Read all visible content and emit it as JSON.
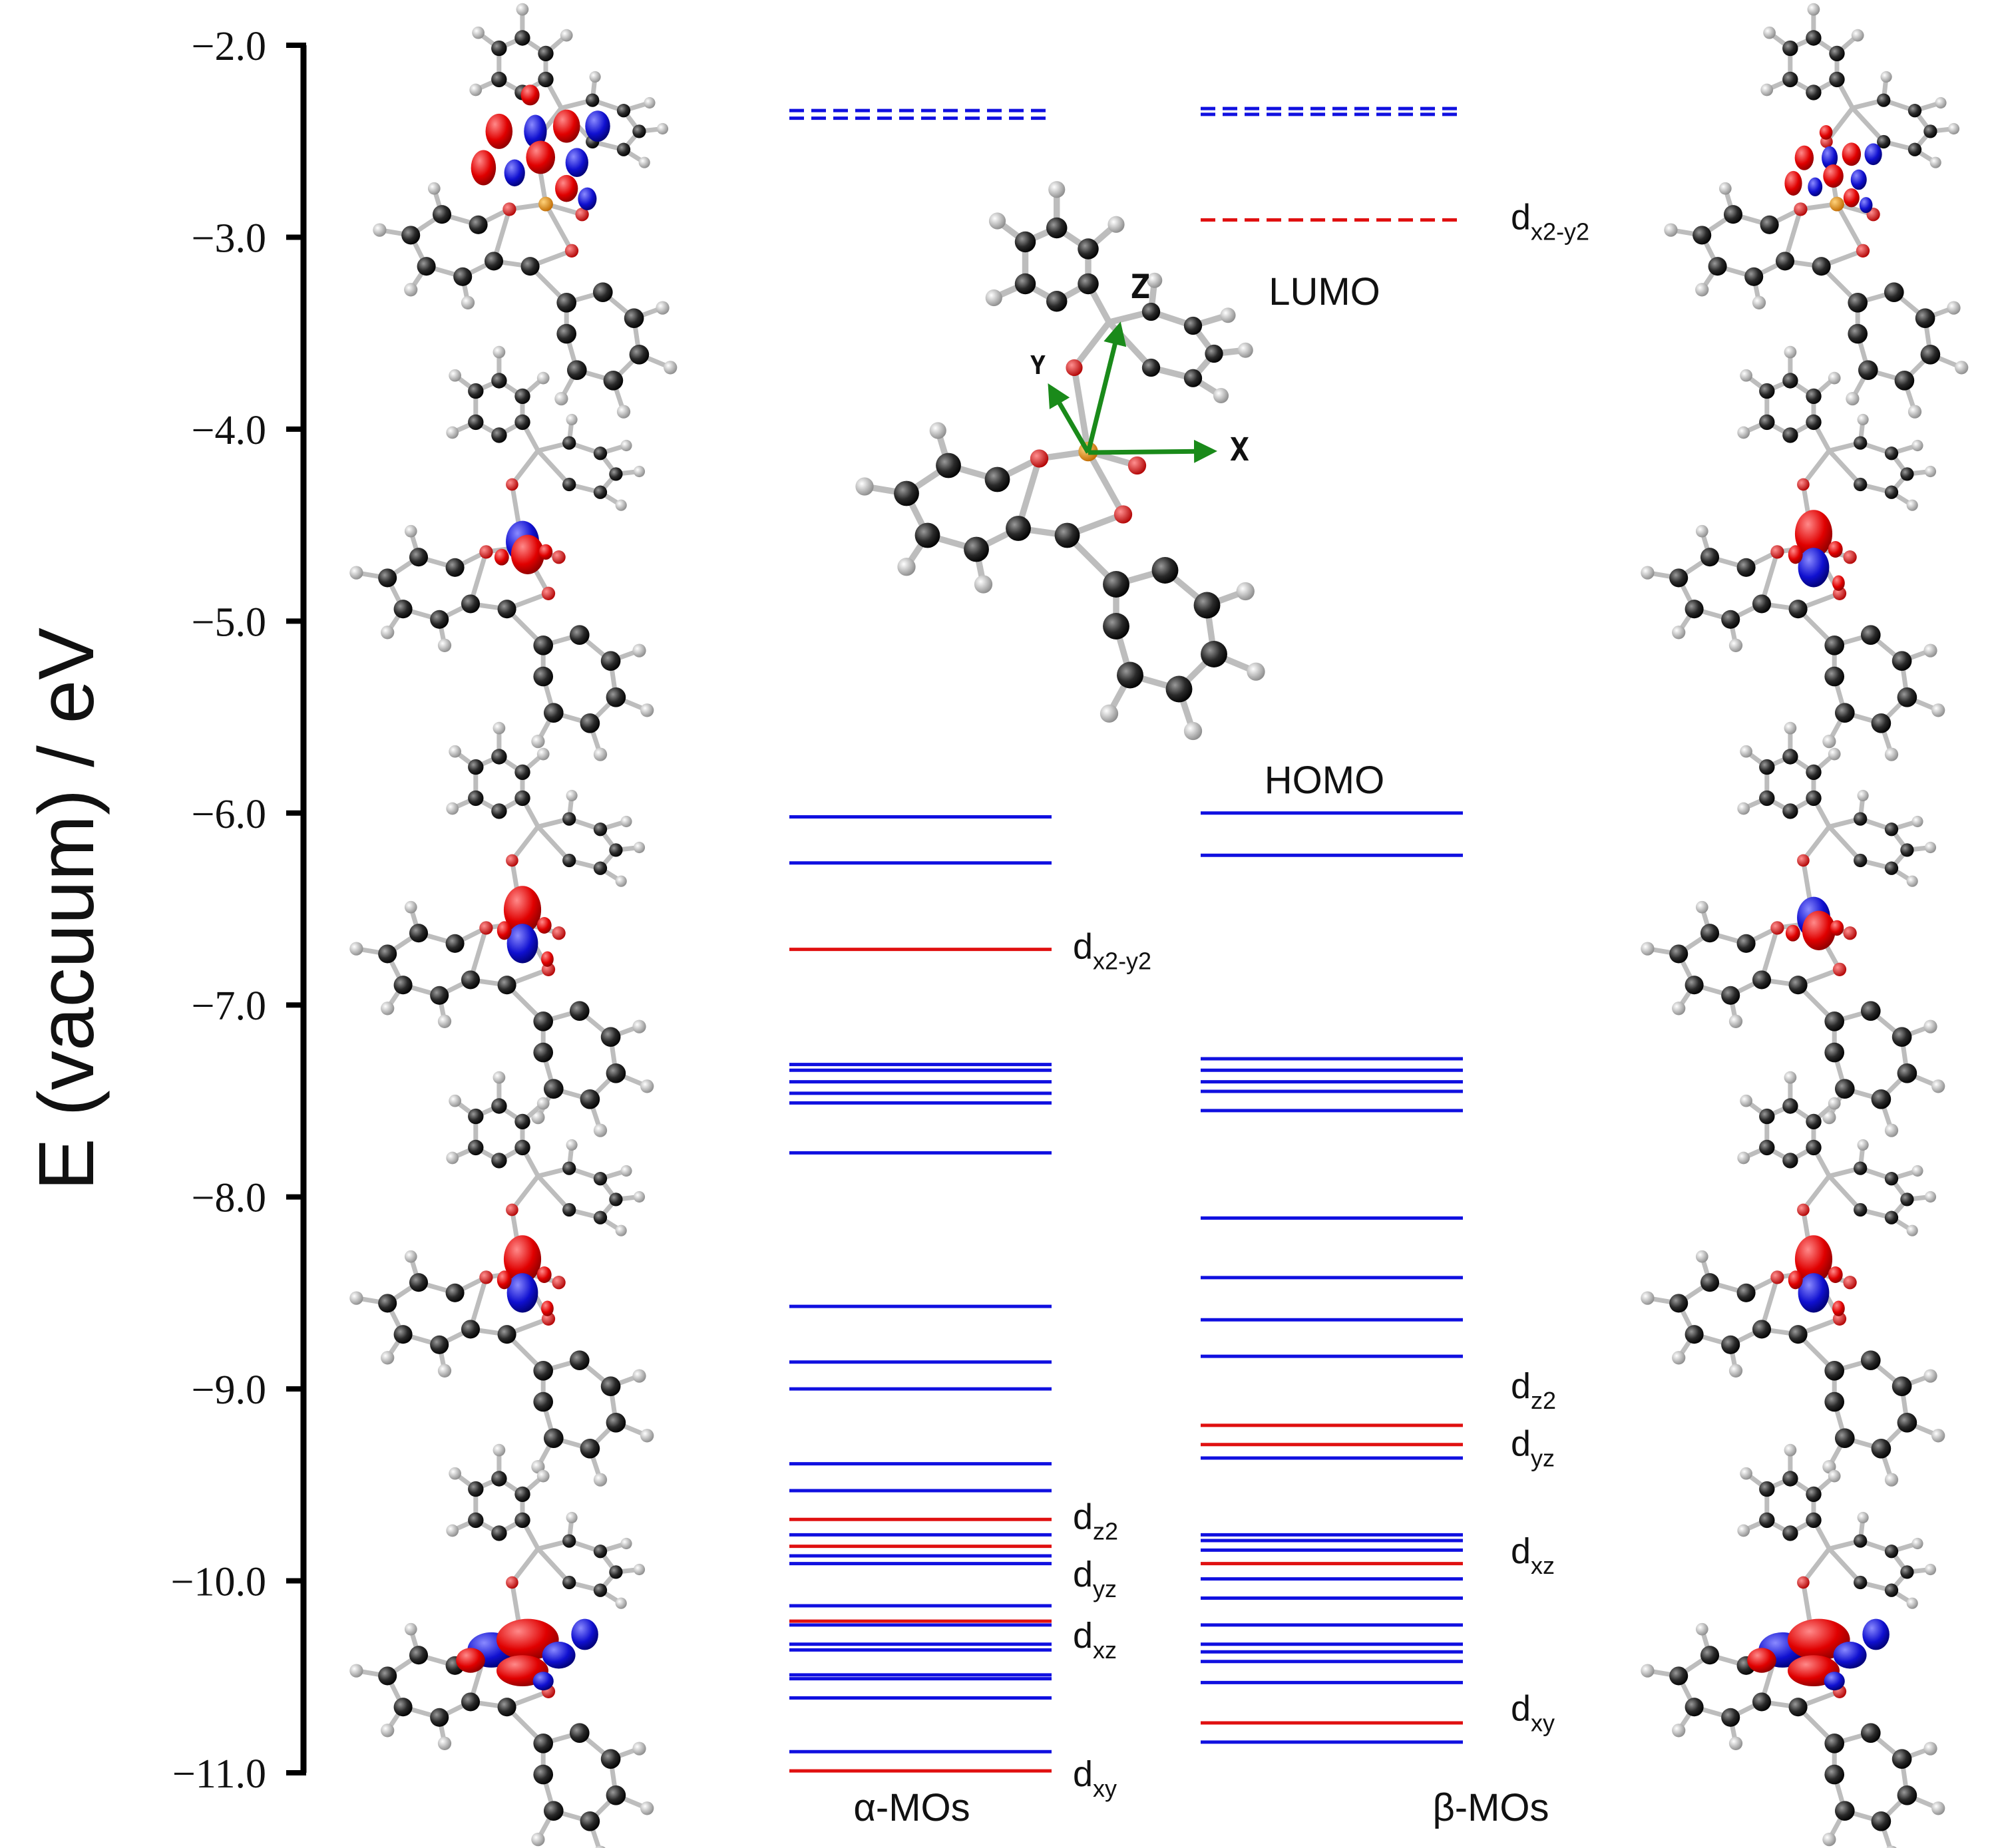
{
  "chart_data": {
    "type": "energy-level-diagram",
    "title": "",
    "ylabel": "E (vacuum)  / eV",
    "ylim": [
      -11.0,
      -2.0
    ],
    "yticks": [
      -2.0,
      -3.0,
      -4.0,
      -5.0,
      -6.0,
      -7.0,
      -8.0,
      -9.0,
      -10.0,
      -11.0
    ],
    "ytick_labels": [
      "−2.0",
      "−3.0",
      "−4.0",
      "−5.0",
      "−6.0",
      "−7.0",
      "−8.0",
      "−9.0",
      "−10.0",
      "−11.0"
    ],
    "colors": {
      "ligand": "#1010e0",
      "metal_d": "#e01010",
      "axis_arrow": "#1a8a1a"
    },
    "columns": [
      {
        "name": "α-MOs",
        "unoccupied": [
          {
            "energy": -2.34,
            "kind": "ligand"
          },
          {
            "energy": -2.38,
            "kind": "ligand"
          }
        ],
        "occupied": [
          {
            "energy": -6.02,
            "kind": "ligand"
          },
          {
            "energy": -6.26,
            "kind": "ligand"
          },
          {
            "energy": -6.71,
            "kind": "metal_d"
          },
          {
            "energy": -7.31,
            "kind": "ligand"
          },
          {
            "energy": -7.34,
            "kind": "ligand"
          },
          {
            "energy": -7.4,
            "kind": "ligand"
          },
          {
            "energy": -7.46,
            "kind": "ligand"
          },
          {
            "energy": -7.51,
            "kind": "ligand"
          },
          {
            "energy": -7.77,
            "kind": "ligand"
          },
          {
            "energy": -8.57,
            "kind": "ligand"
          },
          {
            "energy": -8.86,
            "kind": "ligand"
          },
          {
            "energy": -9.0,
            "kind": "ligand"
          },
          {
            "energy": -9.39,
            "kind": "ligand"
          },
          {
            "energy": -9.53,
            "kind": "ligand"
          },
          {
            "energy": -9.68,
            "kind": "metal_d"
          },
          {
            "energy": -9.76,
            "kind": "ligand"
          },
          {
            "energy": -9.82,
            "kind": "metal_d"
          },
          {
            "energy": -9.87,
            "kind": "ligand"
          },
          {
            "energy": -9.91,
            "kind": "ligand"
          },
          {
            "energy": -10.13,
            "kind": "ligand"
          },
          {
            "energy": -10.21,
            "kind": "metal_d"
          },
          {
            "energy": -10.23,
            "kind": "ligand"
          },
          {
            "energy": -10.33,
            "kind": "ligand"
          },
          {
            "energy": -10.36,
            "kind": "ligand"
          },
          {
            "energy": -10.49,
            "kind": "ligand"
          },
          {
            "energy": -10.51,
            "kind": "ligand"
          },
          {
            "energy": -10.61,
            "kind": "ligand"
          },
          {
            "energy": -10.89,
            "kind": "ligand"
          },
          {
            "energy": -10.99,
            "kind": "metal_d"
          }
        ],
        "labels": [
          {
            "text": "d",
            "sub": "x2-y2",
            "energy": -6.71
          },
          {
            "text": "d",
            "sub": "z2",
            "energy": -9.68
          },
          {
            "text": "d",
            "sub": "yz",
            "energy": -9.98
          },
          {
            "text": "d",
            "sub": "xz",
            "energy": -10.3
          },
          {
            "text": "d",
            "sub": "xy",
            "energy": -11.02
          }
        ]
      },
      {
        "name": "β-MOs",
        "unoccupied": [
          {
            "energy": -2.33,
            "kind": "ligand"
          },
          {
            "energy": -2.36,
            "kind": "ligand"
          },
          {
            "energy": -2.91,
            "kind": "metal_d"
          }
        ],
        "occupied": [
          {
            "energy": -6.0,
            "kind": "ligand"
          },
          {
            "energy": -6.22,
            "kind": "ligand"
          },
          {
            "energy": -7.28,
            "kind": "ligand"
          },
          {
            "energy": -7.34,
            "kind": "ligand"
          },
          {
            "energy": -7.4,
            "kind": "ligand"
          },
          {
            "energy": -7.45,
            "kind": "ligand"
          },
          {
            "energy": -7.55,
            "kind": "ligand"
          },
          {
            "energy": -8.11,
            "kind": "ligand"
          },
          {
            "energy": -8.42,
            "kind": "ligand"
          },
          {
            "energy": -8.64,
            "kind": "ligand"
          },
          {
            "energy": -8.83,
            "kind": "ligand"
          },
          {
            "energy": -9.19,
            "kind": "metal_d"
          },
          {
            "energy": -9.29,
            "kind": "metal_d"
          },
          {
            "energy": -9.36,
            "kind": "ligand"
          },
          {
            "energy": -9.76,
            "kind": "ligand"
          },
          {
            "energy": -9.79,
            "kind": "ligand"
          },
          {
            "energy": -9.84,
            "kind": "ligand"
          },
          {
            "energy": -9.91,
            "kind": "metal_d"
          },
          {
            "energy": -9.99,
            "kind": "ligand"
          },
          {
            "energy": -10.09,
            "kind": "ligand"
          },
          {
            "energy": -10.23,
            "kind": "ligand"
          },
          {
            "energy": -10.33,
            "kind": "ligand"
          },
          {
            "energy": -10.37,
            "kind": "ligand"
          },
          {
            "energy": -10.42,
            "kind": "ligand"
          },
          {
            "energy": -10.53,
            "kind": "ligand"
          },
          {
            "energy": -10.74,
            "kind": "metal_d"
          },
          {
            "energy": -10.84,
            "kind": "ligand"
          }
        ],
        "labels": [
          {
            "text": "d",
            "sub": "x2-y2",
            "energy": -2.91
          },
          {
            "text": "d",
            "sub": "z2",
            "energy": -9.0
          },
          {
            "text": "d",
            "sub": "yz",
            "energy": -9.3
          },
          {
            "text": "d",
            "sub": "xz",
            "energy": -9.86
          },
          {
            "text": "d",
            "sub": "xy",
            "energy": -10.68
          }
        ]
      }
    ],
    "annotations": {
      "lumo": "LUMO",
      "homo": "HOMO"
    },
    "inset_axes": {
      "x": "X",
      "y": "Y",
      "z": "Z"
    }
  }
}
